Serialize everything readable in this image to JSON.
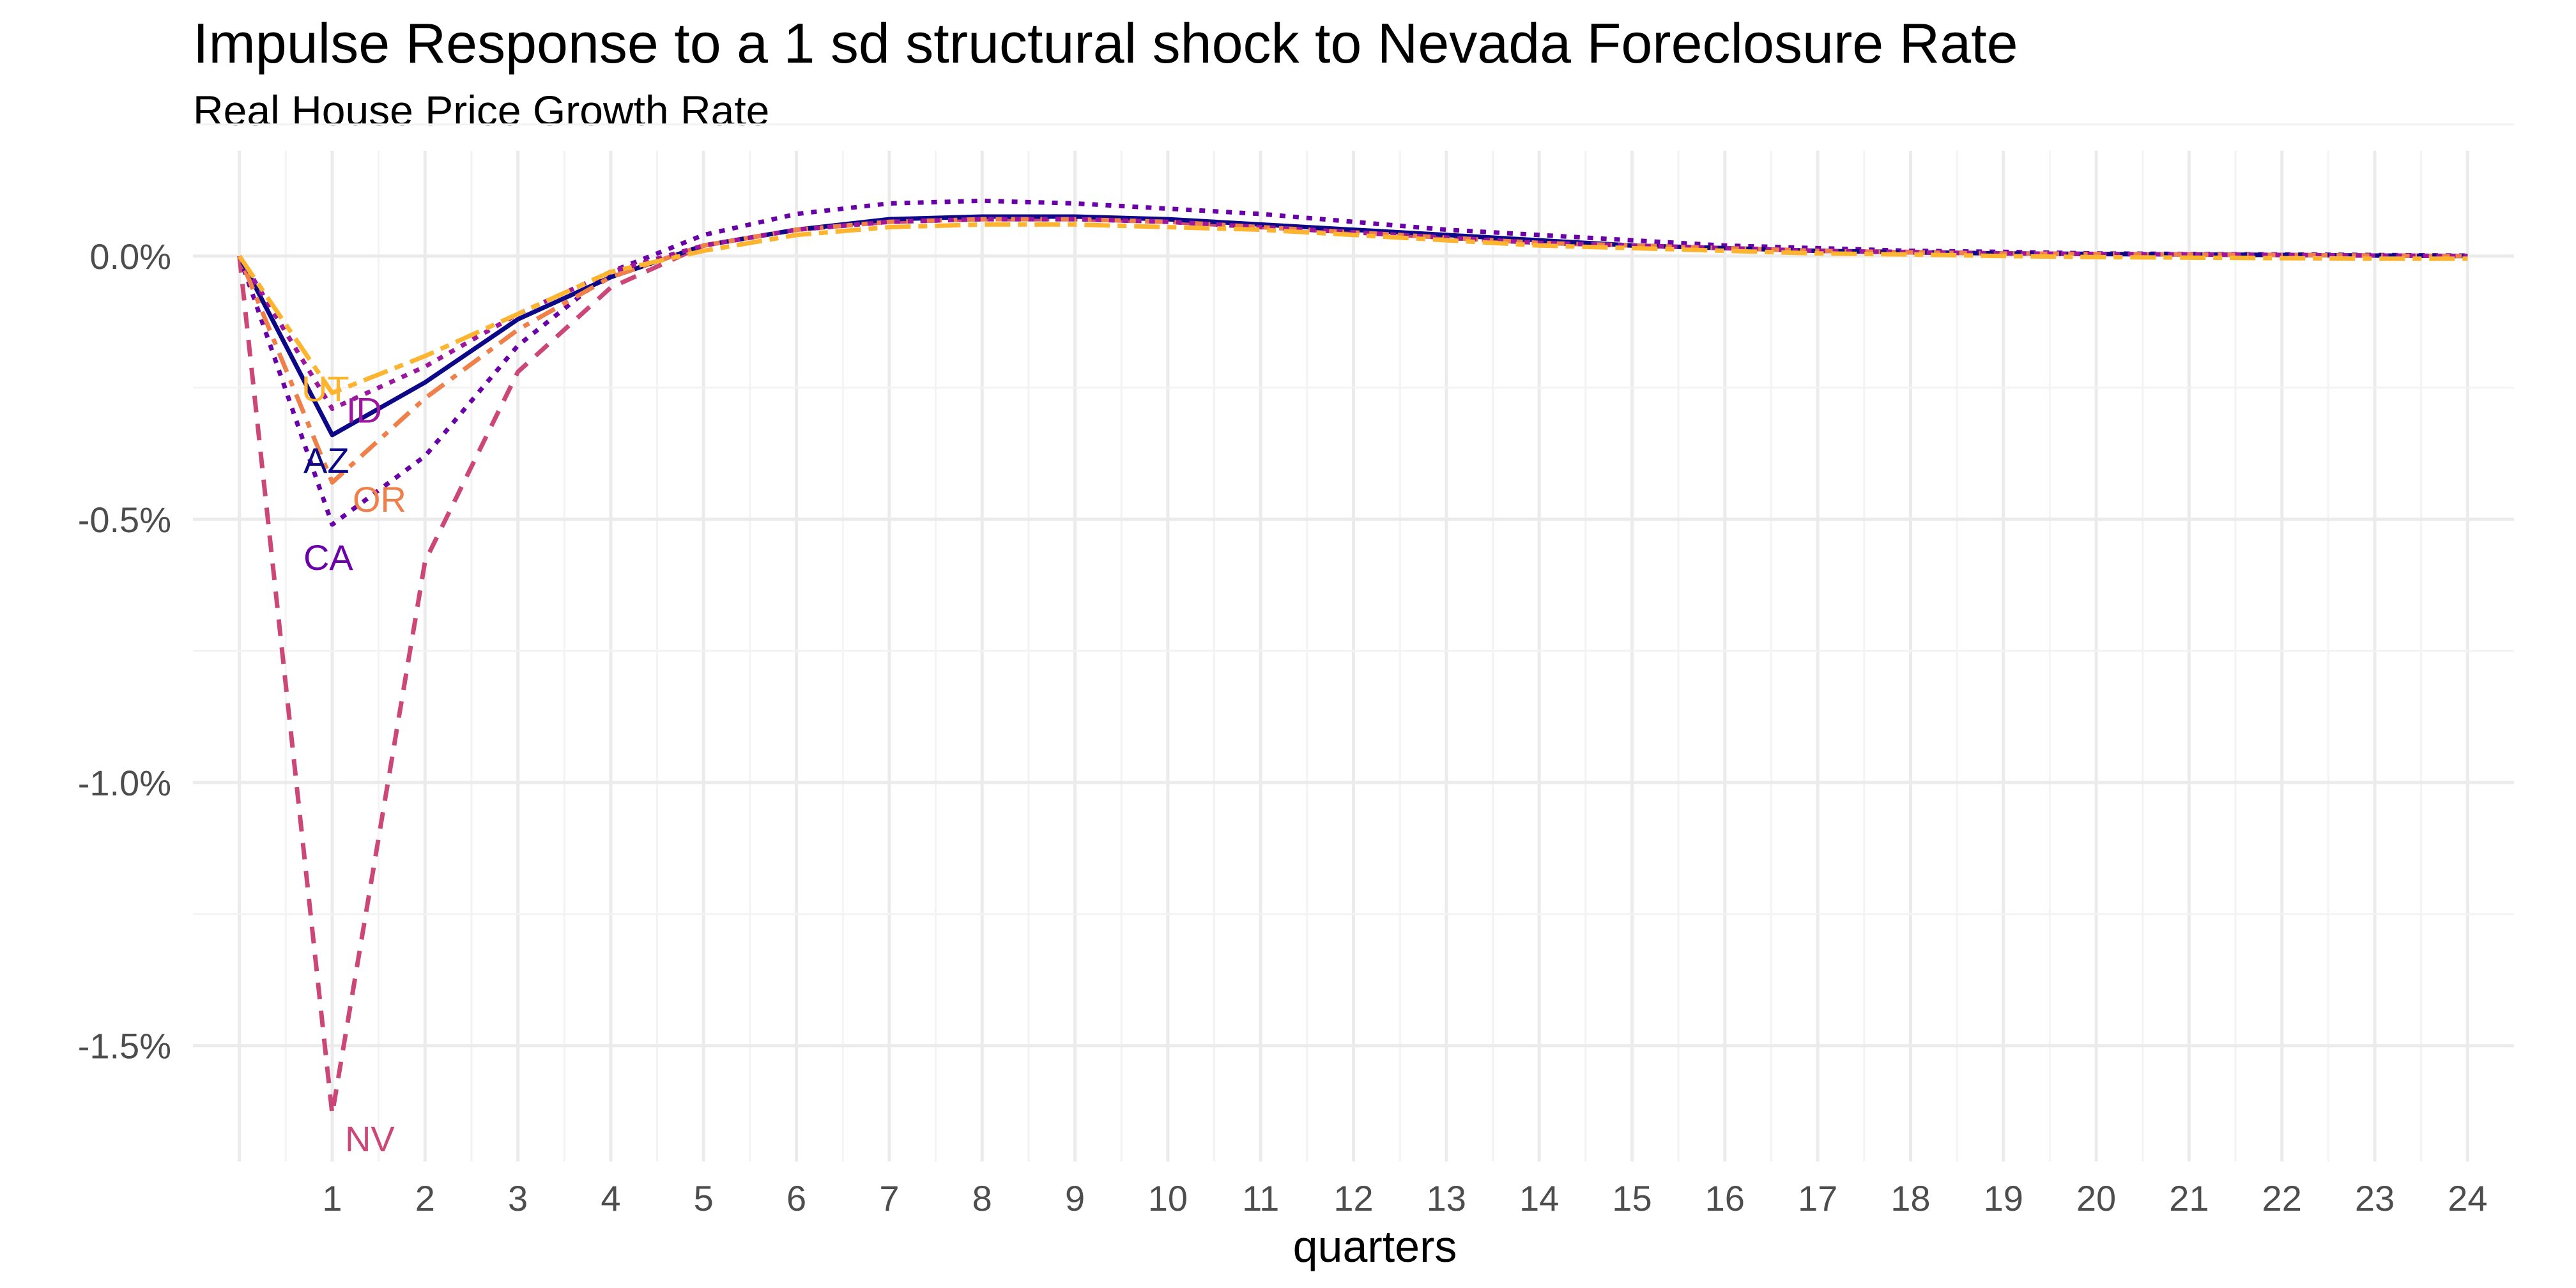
{
  "chart_data": {
    "type": "line",
    "title": "Impulse Response to a 1 sd structural shock to Nevada Foreclosure Rate",
    "subtitle": "Real House Price Growth Rate",
    "xlabel": "quarters",
    "ylabel": "",
    "xlim": [
      -0.5,
      24.5
    ],
    "ylim": [
      -1.72,
      0.2
    ],
    "x_ticks": [
      1,
      2,
      3,
      4,
      5,
      6,
      7,
      8,
      9,
      10,
      11,
      12,
      13,
      14,
      15,
      16,
      17,
      18,
      19,
      20,
      21,
      22,
      23,
      24
    ],
    "x_tick_labels": [
      "1",
      "2",
      "3",
      "4",
      "5",
      "6",
      "7",
      "8",
      "9",
      "10",
      "11",
      "12",
      "13",
      "14",
      "15",
      "16",
      "17",
      "18",
      "19",
      "20",
      "21",
      "22",
      "23",
      "24"
    ],
    "y_ticks": [
      0.0,
      -0.5,
      -1.0,
      -1.5
    ],
    "y_tick_labels": [
      "0.0%",
      "-0.5%",
      "-1.0%",
      "-1.5%"
    ],
    "grid": true,
    "legend": "none (direct labels near quarter 1)",
    "x": [
      0,
      1,
      2,
      3,
      4,
      5,
      6,
      7,
      8,
      9,
      10,
      11,
      12,
      13,
      14,
      15,
      16,
      17,
      18,
      19,
      20,
      21,
      22,
      23,
      24
    ],
    "series": [
      {
        "name": "NV",
        "color": "#cc4778",
        "dash": "dashed",
        "values": [
          0.0,
          -1.63,
          -0.58,
          -0.22,
          -0.06,
          0.02,
          0.05,
          0.065,
          0.07,
          0.07,
          0.065,
          0.055,
          0.045,
          0.035,
          0.025,
          0.02,
          0.015,
          0.01,
          0.008,
          0.005,
          0.004,
          0.003,
          0.002,
          0.001,
          0.0
        ]
      },
      {
        "name": "CA",
        "color": "#6a00a8",
        "dash": "dotted",
        "values": [
          0.0,
          -0.51,
          -0.38,
          -0.17,
          -0.03,
          0.04,
          0.08,
          0.1,
          0.105,
          0.1,
          0.09,
          0.08,
          0.065,
          0.05,
          0.04,
          0.03,
          0.02,
          0.015,
          0.01,
          0.008,
          0.005,
          0.004,
          0.003,
          0.002,
          0.001
        ]
      },
      {
        "name": "AZ",
        "color": "#0d0887",
        "dash": "solid",
        "values": [
          0.0,
          -0.34,
          -0.24,
          -0.12,
          -0.04,
          0.02,
          0.05,
          0.07,
          0.075,
          0.075,
          0.07,
          0.06,
          0.05,
          0.04,
          0.03,
          0.02,
          0.015,
          0.01,
          0.007,
          0.005,
          0.004,
          0.003,
          0.002,
          0.001,
          0.0
        ]
      },
      {
        "name": "OR",
        "color": "#f0804a",
        "dash": "dot-dash",
        "values": [
          0.0,
          -0.43,
          -0.27,
          -0.14,
          -0.04,
          0.02,
          0.05,
          0.065,
          0.07,
          0.07,
          0.065,
          0.055,
          0.045,
          0.035,
          0.025,
          0.02,
          0.015,
          0.01,
          0.007,
          0.005,
          0.004,
          0.003,
          0.002,
          0.001,
          0.0
        ]
      },
      {
        "name": "ID",
        "color": "#9c179e",
        "dash": "dotted",
        "values": [
          0.0,
          -0.29,
          -0.21,
          -0.11,
          -0.03,
          0.02,
          0.05,
          0.065,
          0.07,
          0.07,
          0.065,
          0.055,
          0.045,
          0.035,
          0.025,
          0.02,
          0.015,
          0.01,
          0.007,
          0.005,
          0.004,
          0.003,
          0.002,
          0.001,
          0.0
        ]
      },
      {
        "name": "UT",
        "color": "#fdb42f",
        "dash": "long-dash",
        "values": [
          0.0,
          -0.26,
          -0.19,
          -0.11,
          -0.03,
          0.01,
          0.04,
          0.055,
          0.06,
          0.06,
          0.055,
          0.05,
          0.04,
          0.03,
          0.02,
          0.015,
          0.01,
          0.005,
          0.003,
          0.0,
          -0.002,
          -0.003,
          -0.004,
          -0.005,
          -0.005
        ]
      }
    ]
  }
}
